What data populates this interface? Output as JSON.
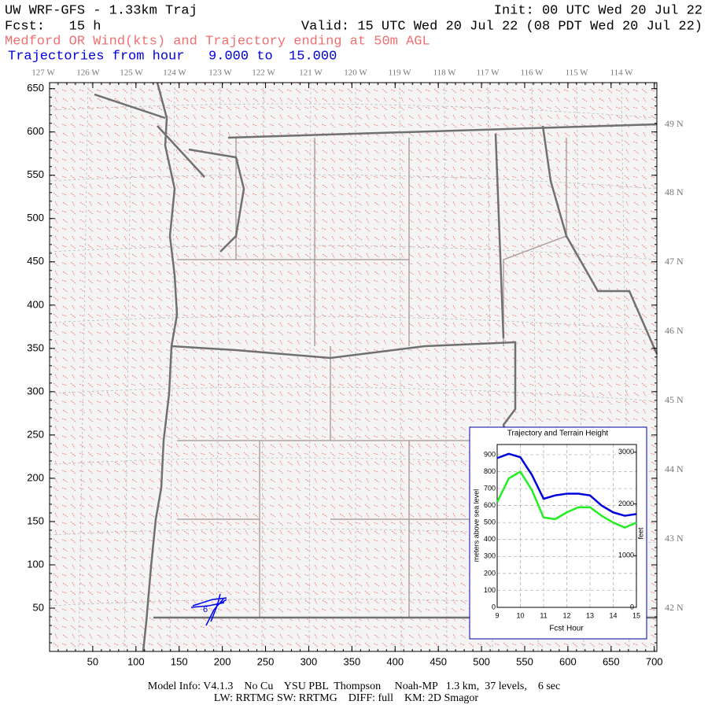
{
  "header": {
    "title": "UW WRF-GFS - 1.33km Traj",
    "init": "Init: 00 UTC Wed 20 Jul 22",
    "fcst": "Fcst:   15 h",
    "valid": "Valid: 15 UTC Wed 20 Jul 22 (08 PDT Wed 20 Jul 22)",
    "subtitle": "Medford OR Wind(kts) and Trajectory ending at 50m AGL",
    "trajectories": "Trajectories from hour   9.000 to  15.000"
  },
  "map": {
    "xlim": [
      0,
      703
    ],
    "ylim": [
      0,
      657
    ],
    "xticks": [
      50,
      100,
      150,
      200,
      250,
      300,
      350,
      400,
      450,
      500,
      550,
      600,
      650,
      700
    ],
    "yticks": [
      50,
      100,
      150,
      200,
      250,
      300,
      350,
      400,
      450,
      500,
      550,
      600,
      650
    ],
    "lon_labels": [
      "127 W",
      "126 W",
      "125 W",
      "124 W",
      "123 W",
      "122 W",
      "121 W",
      "120 W",
      "119 W",
      "118 W",
      "117 W",
      "116 W",
      "115 W",
      "114 W"
    ],
    "lat_labels": [
      "49 N",
      "48 N",
      "47 N",
      "46 N",
      "45 N",
      "44 N",
      "43 N",
      "42 N"
    ],
    "traj_label": "6"
  },
  "chart_data": {
    "type": "line",
    "title": "Trajectory and Terrain Height",
    "x_label": "Fcst Hour",
    "y_label": "meters above sea level",
    "y2_label": "feet",
    "x": [
      9,
      9.5,
      10,
      10.5,
      11,
      11.5,
      12,
      12.5,
      13,
      13.5,
      14,
      14.5,
      15
    ],
    "xlim": [
      9,
      15
    ],
    "xticks": [
      9,
      10,
      11,
      12,
      13,
      14,
      15
    ],
    "ylim": [
      0,
      960
    ],
    "yticks": [
      0,
      100,
      200,
      300,
      400,
      500,
      600,
      700,
      800,
      900
    ],
    "y2lim": [
      0,
      3150
    ],
    "y2ticks": [
      0,
      1000,
      2000,
      3000
    ],
    "grid": true,
    "series": [
      {
        "name": "Trajectory",
        "color": "#0000dd",
        "values": [
          880,
          905,
          885,
          780,
          640,
          660,
          670,
          670,
          660,
          600,
          560,
          540,
          550
        ]
      },
      {
        "name": "Terrain",
        "color": "#22ee22",
        "values": [
          620,
          760,
          800,
          690,
          530,
          520,
          560,
          590,
          590,
          540,
          500,
          470,
          500
        ]
      }
    ]
  },
  "footer": {
    "line1": "Model Info: V4.1.3    No Cu    YSU PBL  Thompson     Noah-MP   1.3 km,  37 levels,    6 sec",
    "line2": "LW: RRTMG SW: RRTMG    DIFF: full    KM: 2D Smagor"
  }
}
